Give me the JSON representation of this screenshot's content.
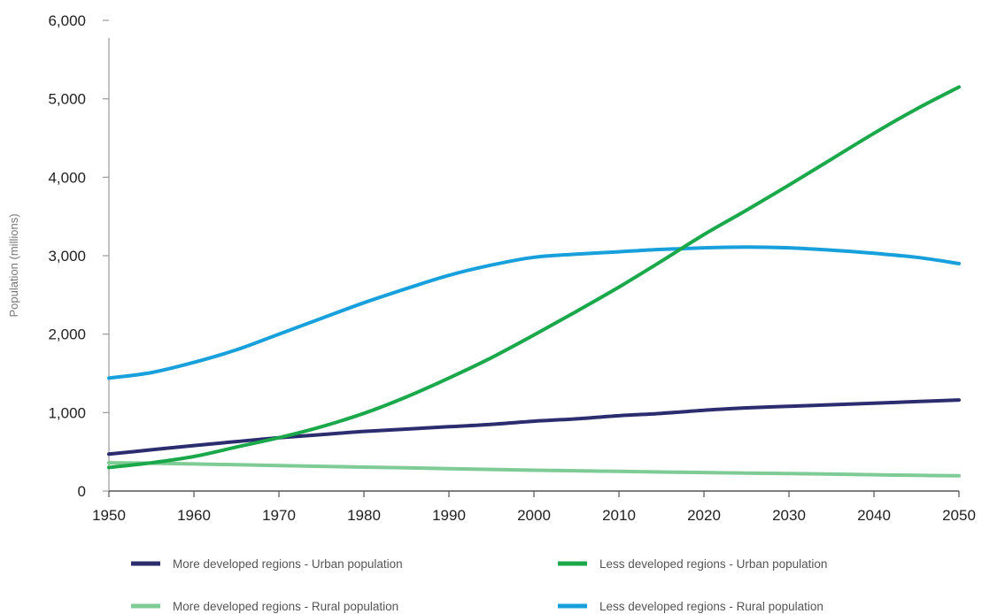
{
  "chart_data": {
    "type": "line",
    "title": "",
    "xlabel": "",
    "ylabel": "Population (millions)",
    "x": [
      1950,
      1955,
      1960,
      1965,
      1970,
      1975,
      1980,
      1985,
      1990,
      1995,
      2000,
      2005,
      2010,
      2015,
      2020,
      2025,
      2030,
      2035,
      2040,
      2045,
      2050
    ],
    "xticks": [
      1950,
      1960,
      1970,
      1980,
      1990,
      2000,
      2010,
      2020,
      2030,
      2040,
      2050
    ],
    "xtick_labels": [
      "1950",
      "1960",
      "1970",
      "1980",
      "1990",
      "2000",
      "2010",
      "2020",
      "2030",
      "2040",
      "2050"
    ],
    "ylim": [
      0,
      6000
    ],
    "yticks": [
      0,
      1000,
      2000,
      3000,
      4000,
      5000,
      6000
    ],
    "ytick_labels": [
      "0",
      "1,000",
      "2,000",
      "3,000",
      "4,000",
      "5,000",
      "6,000"
    ],
    "grid": false,
    "legend_position": "bottom",
    "series": [
      {
        "name": "More developed regions - Urban population",
        "color": "#2b2d6e",
        "values": [
          470,
          525,
          580,
          630,
          680,
          720,
          760,
          790,
          820,
          850,
          890,
          920,
          960,
          990,
          1030,
          1060,
          1080,
          1100,
          1120,
          1140,
          1160
        ]
      },
      {
        "name": "Less developed regions - Urban population",
        "color": "#1aa84a",
        "values": [
          300,
          360,
          440,
          560,
          680,
          820,
          990,
          1200,
          1440,
          1700,
          1990,
          2290,
          2600,
          2930,
          3270,
          3580,
          3900,
          4230,
          4560,
          4870,
          5150
        ]
      },
      {
        "name": "More developed regions - Rural population",
        "color": "#7ecb96",
        "values": [
          360,
          355,
          345,
          335,
          325,
          315,
          305,
          295,
          285,
          275,
          265,
          258,
          250,
          243,
          236,
          229,
          222,
          215,
          208,
          200,
          195
        ]
      },
      {
        "name": "Less developed regions - Rural population",
        "color": "#17a0db",
        "values": [
          1440,
          1510,
          1640,
          1800,
          2000,
          2200,
          2400,
          2580,
          2750,
          2880,
          2980,
          3020,
          3050,
          3080,
          3100,
          3110,
          3100,
          3070,
          3030,
          2980,
          2900
        ]
      }
    ]
  }
}
